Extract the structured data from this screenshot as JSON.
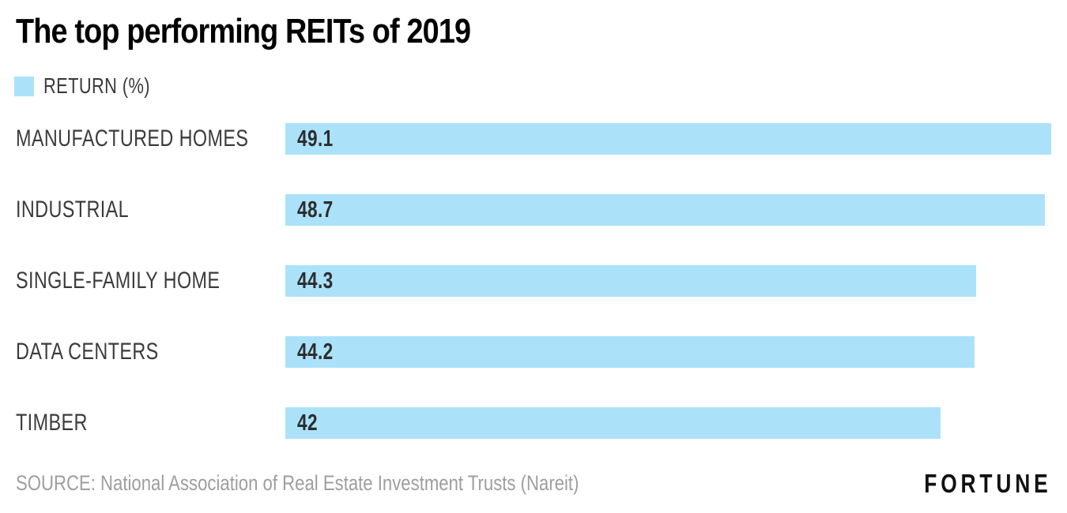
{
  "chart": {
    "title": "The top performing REITs of 2019",
    "legend_label": "RETURN (%)",
    "source": "SOURCE: National Association of Real Estate Investment Trusts (Nareit)",
    "brand": "FORTUNE",
    "colors": {
      "bar": "#ABE2FA",
      "title": "#000000",
      "category_label": "#3b3b3b",
      "value_label": "#2d2d2d",
      "source_text": "#9e9e9e",
      "brand_text": "#111111",
      "background": "#ffffff"
    }
  },
  "chart_data": {
    "type": "bar",
    "orientation": "horizontal",
    "title": "The top performing REITs of 2019",
    "series_label": "RETURN (%)",
    "categories": [
      "MANUFACTURED HOMES",
      "INDUSTRIAL",
      "SINGLE-FAMILY HOME",
      "DATA CENTERS",
      "TIMBER"
    ],
    "values": [
      49.1,
      48.7,
      44.3,
      44.2,
      42
    ],
    "xlabel": "",
    "ylabel": "",
    "xlim": [
      0,
      49.1
    ],
    "grid": false,
    "legend_position": "top-left",
    "value_labels": "inside-start",
    "sorted": "descending"
  }
}
